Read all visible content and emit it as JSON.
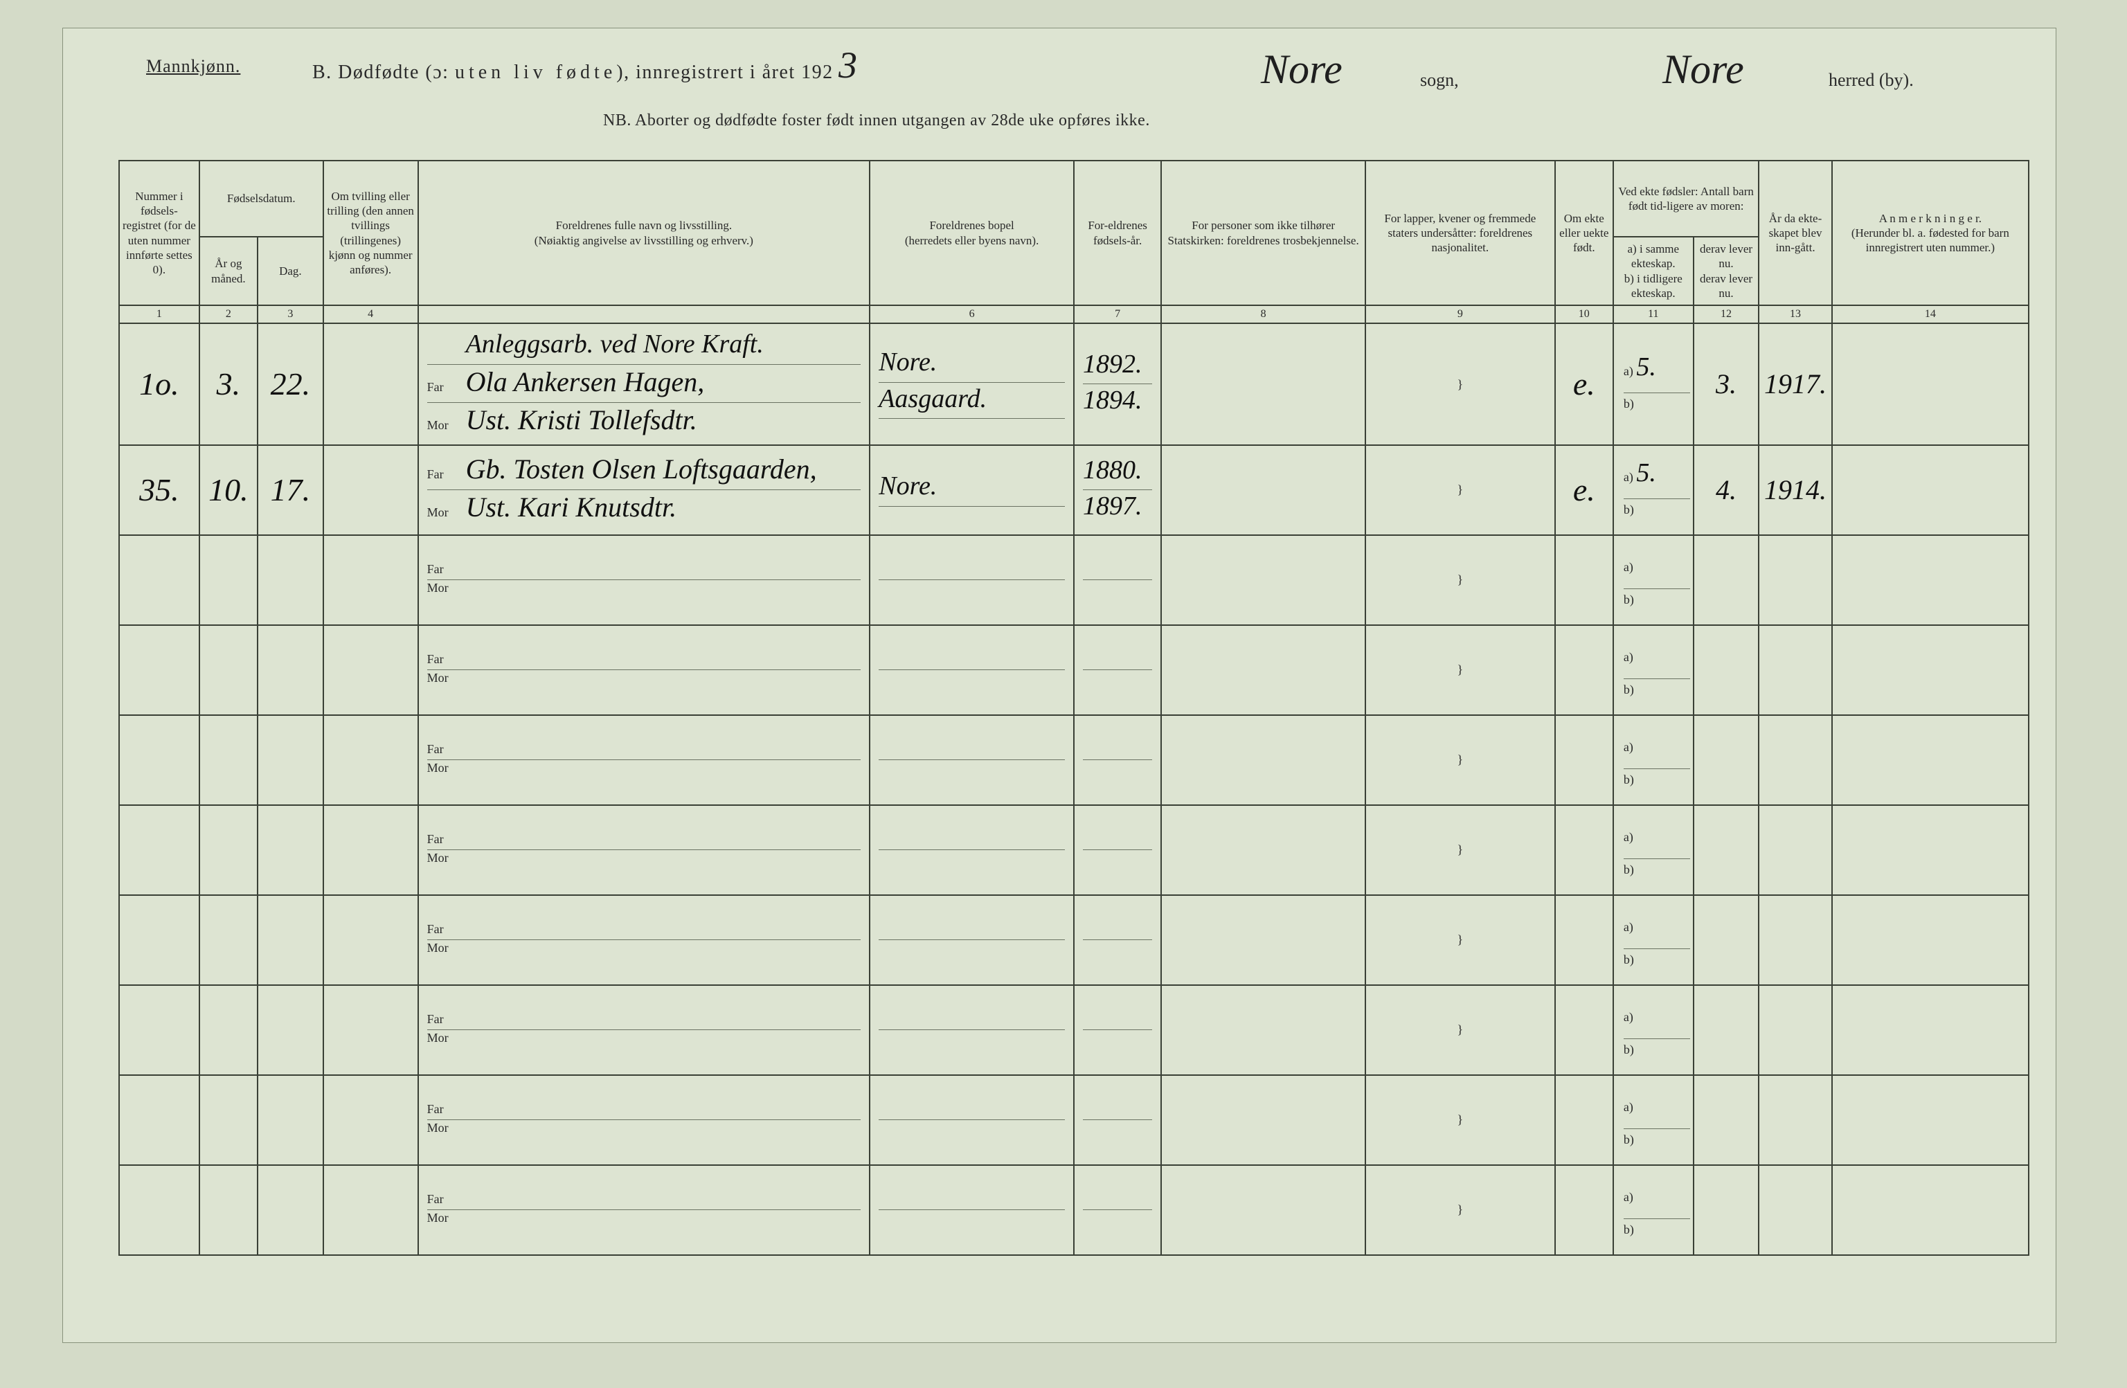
{
  "header": {
    "gender": "Mannkjønn.",
    "title_prefix": "B.  Dødfødte (ɔ:  ",
    "title_spaced": "uten liv fødte",
    "title_suffix": "),  innregistrert i året 192",
    "year_hand": "3",
    "sogn_hand": "Nore",
    "sogn_label": "sogn,",
    "herred_hand": "Nore",
    "herred_label": "herred (by).",
    "nb": "NB.  Aborter og dødfødte foster født innen utgangen av 28de uke opføres ikke."
  },
  "columns": {
    "c1": "Nummer i fødsels-registret (for de uten nummer innførte settes 0).",
    "c2": "Fødselsdatum.",
    "c2a": "År og måned.",
    "c2b": "Dag.",
    "c3": "Om tvilling eller trilling (den annen tvillings (trillingenes) kjønn og nummer anføres).",
    "c45": "Foreldrenes fulle navn og livsstilling.\n(Nøiaktig angivelse av livsstilling og erhverv.)",
    "c6": "Foreldrenes bopel\n(herredets eller byens navn).",
    "c7": "For-eldrenes fødsels-år.",
    "c8": "For personer som ikke tilhører Statskirken: foreldrenes trosbekjennelse.",
    "c9": "For lapper, kvener og fremmede staters undersåtter: foreldrenes nasjonalitet.",
    "c10": "Om ekte eller uekte født.",
    "c11_top": "Ved ekte fødsler: Antall barn født tid-ligere av moren:",
    "c11": "a) i samme ekteskap.\nb) i tidligere ekteskap.",
    "c12": "derav lever nu.\nderav lever nu.",
    "c13": "År da ekte-skapet blev inn-gått.",
    "c14": "A n m e r k n i n g e r.\n(Herunder bl. a. fødested for barn innregistrert uten nummer.)",
    "far": "Far",
    "mor": "Mor",
    "a": "a)",
    "b": "b)"
  },
  "colnums": [
    "1",
    "2",
    "3",
    "4",
    "",
    "6",
    "7",
    "8",
    "9",
    "10",
    "11",
    "12",
    "13",
    "14"
  ],
  "rows": [
    {
      "num": "1o.",
      "maaned": "3.",
      "dag": "22.",
      "extra_top": "Anleggsarb. ved Nore Kraft.",
      "far": "Ola Ankersen Hagen,",
      "mor": "Ust. Kristi Tollefsdtr.",
      "bopel_top": "Nore.",
      "bopel_far": "Aasgaard.",
      "bopel_mor": "",
      "aar_far": "1892.",
      "aar_mor": "1894.",
      "ekte": "e.",
      "a_val": "5.",
      "derav": "3.",
      "aar_ekte": "1917."
    },
    {
      "num": "35.",
      "maaned": "10.",
      "dag": "17.",
      "extra_top": "",
      "far": "Gb. Tosten Olsen Loftsgaarden,",
      "mor": "Ust. Kari Knutsdtr.",
      "bopel_top": "",
      "bopel_far": "Nore.",
      "bopel_mor": "",
      "aar_far": "1880.",
      "aar_mor": "1897.",
      "ekte": "e.",
      "a_val": "5.",
      "derav": "4.",
      "aar_ekte": "1914."
    },
    {},
    {},
    {},
    {},
    {},
    {},
    {},
    {}
  ]
}
